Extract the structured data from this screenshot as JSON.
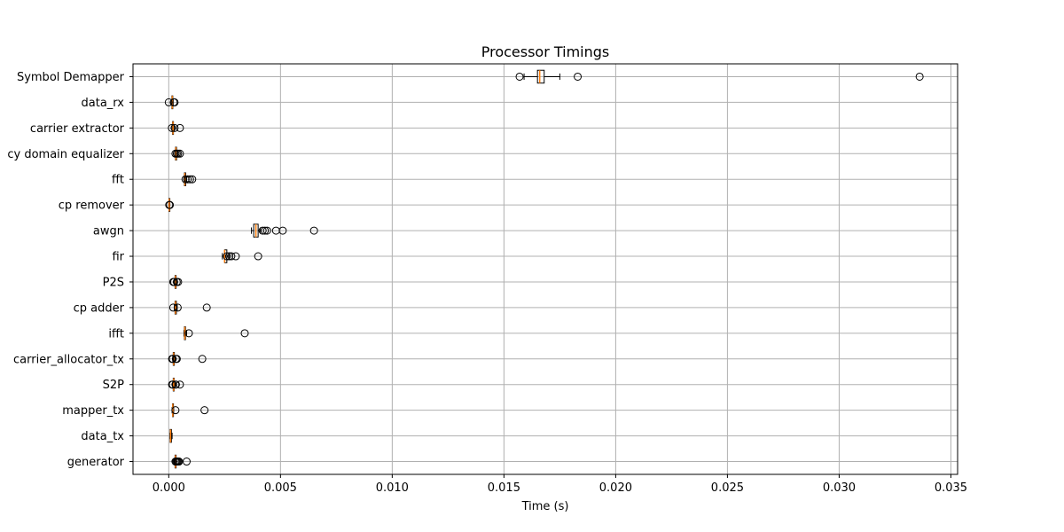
{
  "chart_data": {
    "type": "boxplot",
    "orientation": "horizontal",
    "title": "Processor Timings",
    "xlabel": "Time (s)",
    "ylabel": "",
    "xlim": [
      -0.0016,
      0.0353
    ],
    "xticks": [
      0.0,
      0.005,
      0.01,
      0.015,
      0.02,
      0.025,
      0.03,
      0.035
    ],
    "xtick_labels": [
      "0.000",
      "0.005",
      "0.010",
      "0.015",
      "0.020",
      "0.025",
      "0.030",
      "0.035"
    ],
    "grid": true,
    "colors": {
      "box": "#000000",
      "median": "#ff7f0e",
      "grid": "#b0b0b0",
      "flier": "#000000"
    },
    "series": [
      {
        "label": "generator",
        "whislo": 0.00025,
        "q1": 0.00028,
        "med": 0.0003,
        "q3": 0.00033,
        "whishi": 0.00038,
        "fliers": [
          0.0003,
          0.00034,
          0.00038,
          0.00042,
          0.00046,
          0.0008
        ]
      },
      {
        "label": "data_tx",
        "whislo": 5e-05,
        "q1": 6e-05,
        "med": 8e-05,
        "q3": 0.00012,
        "whishi": 0.00015,
        "fliers": []
      },
      {
        "label": "mapper_tx",
        "whislo": 0.00015,
        "q1": 0.00017,
        "med": 0.00018,
        "q3": 0.0002,
        "whishi": 0.00022,
        "fliers": [
          0.0003,
          0.0016
        ]
      },
      {
        "label": "S2P",
        "whislo": 0.00018,
        "q1": 0.0002,
        "med": 0.00022,
        "q3": 0.00024,
        "whishi": 0.00027,
        "fliers": [
          0.00015,
          0.00018,
          0.0003,
          0.00032,
          0.0005
        ]
      },
      {
        "label": "carrier_allocator_tx",
        "whislo": 0.00018,
        "q1": 0.0002,
        "med": 0.00022,
        "q3": 0.00025,
        "whishi": 0.00028,
        "fliers": [
          0.00015,
          0.00018,
          0.00032,
          0.00036,
          0.0015
        ]
      },
      {
        "label": "ifft",
        "whislo": 0.00068,
        "q1": 0.0007,
        "med": 0.00072,
        "q3": 0.00075,
        "whishi": 0.0008,
        "fliers": [
          0.0009,
          0.0034
        ]
      },
      {
        "label": "cp adder",
        "whislo": 0.00025,
        "q1": 0.00028,
        "med": 0.0003,
        "q3": 0.00034,
        "whishi": 0.00038,
        "fliers": [
          0.0002,
          0.0004,
          0.0017
        ]
      },
      {
        "label": "P2S",
        "whislo": 0.00025,
        "q1": 0.00028,
        "med": 0.0003,
        "q3": 0.00033,
        "whishi": 0.00038,
        "fliers": [
          0.0002,
          0.00024,
          0.00036,
          0.00042
        ]
      },
      {
        "label": "fir",
        "whislo": 0.0024,
        "q1": 0.0025,
        "med": 0.0025,
        "q3": 0.0026,
        "whishi": 0.0027,
        "fliers": [
          0.0026,
          0.0027,
          0.0028,
          0.003,
          0.004
        ]
      },
      {
        "label": "awgn",
        "whislo": 0.0037,
        "q1": 0.0038,
        "med": 0.0039,
        "q3": 0.004,
        "whishi": 0.0041,
        "fliers": [
          0.0042,
          0.0043,
          0.0044,
          0.0048,
          0.0051,
          0.0065
        ]
      },
      {
        "label": "cp remover",
        "whislo": 0.0,
        "q1": 1e-05,
        "med": 2e-05,
        "q3": 3e-05,
        "whishi": 4e-05,
        "fliers": [
          2e-05,
          5e-05
        ]
      },
      {
        "label": "fft",
        "whislo": 0.00068,
        "q1": 0.0007,
        "med": 0.00072,
        "q3": 0.00076,
        "whishi": 0.0008,
        "fliers": [
          0.00075,
          0.00085,
          0.00095,
          0.00105
        ]
      },
      {
        "label": "cy domain equalizer",
        "whislo": 0.00028,
        "q1": 0.0003,
        "med": 0.00032,
        "q3": 0.00035,
        "whishi": 0.0004,
        "fliers": [
          0.0003,
          0.00036,
          0.00042,
          0.0005
        ]
      },
      {
        "label": "carrier extractor",
        "whislo": 0.00015,
        "q1": 0.00017,
        "med": 0.00019,
        "q3": 0.00021,
        "whishi": 0.00024,
        "fliers": [
          0.00014,
          0.00026,
          0.0005
        ]
      },
      {
        "label": "data_rx",
        "whislo": 0.00012,
        "q1": 0.00014,
        "med": 0.00016,
        "q3": 0.00018,
        "whishi": 0.0002,
        "fliers": [
          0.0,
          0.00022,
          0.00026
        ]
      },
      {
        "label": "Symbol Demapper",
        "whislo": 0.0159,
        "q1": 0.0165,
        "med": 0.0166,
        "q3": 0.0168,
        "whishi": 0.0175,
        "fliers": [
          0.0157,
          0.0183,
          0.0336
        ]
      }
    ]
  }
}
